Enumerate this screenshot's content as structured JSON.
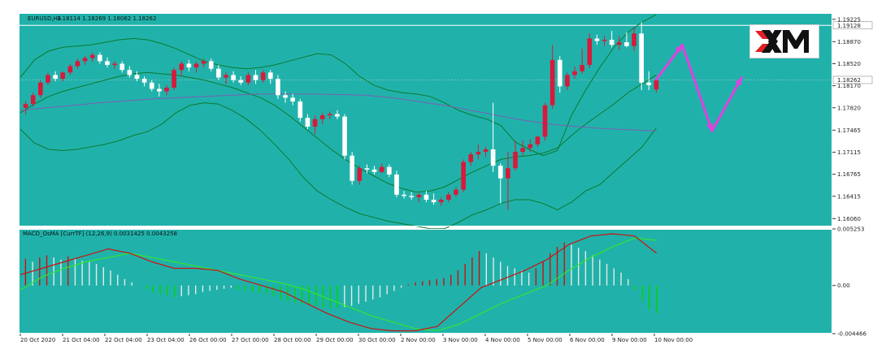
{
  "chart_data": [
    {
      "type": "candlestick",
      "title": "EURUSD,H4",
      "ohlc_header": "1.18114 1.18269 1.18062 1.18262",
      "y_ticks": [
        "1.19225",
        "1.18870",
        "1.18520",
        "1.18170",
        "1.17820",
        "1.17465",
        "1.17115",
        "1.16765",
        "1.16415",
        "1.16060"
      ],
      "ylim": [
        1.15935,
        1.19325
      ],
      "price_labels": {
        "upper_line": "1.19128",
        "current": "1.18262"
      },
      "upper_line_value": 1.19128,
      "current_value": 1.18262,
      "x_ticks": [
        "20 Oct 2020",
        "21 Oct 04:00",
        "22 Oct 04:00",
        "23 Oct 04:00",
        "26 Oct 00:00",
        "27 Oct 00:00",
        "28 Oct 00:00",
        "29 Oct 00:00",
        "30 Oct 00:00",
        "2 Nov 00:00",
        "3 Nov 00:00",
        "4 Nov 00:00",
        "5 Nov 00:00",
        "6 Nov 00:00",
        "9 Nov 00:00",
        "10 Nov 00:00"
      ],
      "candles": [
        [
          1.1782,
          1.1792,
          1.1772,
          1.1788
        ],
        [
          1.1788,
          1.1806,
          1.1784,
          1.1802
        ],
        [
          1.1802,
          1.1826,
          1.1798,
          1.1822
        ],
        [
          1.1822,
          1.1838,
          1.1818,
          1.1834
        ],
        [
          1.1834,
          1.184,
          1.1824,
          1.1828
        ],
        [
          1.1828,
          1.184,
          1.1824,
          1.1838
        ],
        [
          1.1838,
          1.1852,
          1.1834,
          1.1848
        ],
        [
          1.1848,
          1.186,
          1.1844,
          1.1856
        ],
        [
          1.1856,
          1.1864,
          1.185,
          1.1861
        ],
        [
          1.1861,
          1.187,
          1.1855,
          1.1866
        ],
        [
          1.1866,
          1.187,
          1.1852,
          1.1856
        ],
        [
          1.1856,
          1.1862,
          1.1846,
          1.185
        ],
        [
          1.185,
          1.1856,
          1.1844,
          1.1852
        ],
        [
          1.1852,
          1.1856,
          1.1838,
          1.1842
        ],
        [
          1.1842,
          1.1848,
          1.183,
          1.1834
        ],
        [
          1.1834,
          1.184,
          1.1824,
          1.1828
        ],
        [
          1.1828,
          1.1832,
          1.1816,
          1.1822
        ],
        [
          1.1822,
          1.1826,
          1.1808,
          1.1812
        ],
        [
          1.1812,
          1.182,
          1.18,
          1.1808
        ],
        [
          1.1808,
          1.1818,
          1.1802,
          1.1814
        ],
        [
          1.1814,
          1.1846,
          1.181,
          1.1842
        ],
        [
          1.1842,
          1.1856,
          1.1832,
          1.1852
        ],
        [
          1.1852,
          1.1858,
          1.184,
          1.1846
        ],
        [
          1.1846,
          1.1856,
          1.1838,
          1.1852
        ],
        [
          1.1852,
          1.186,
          1.1846,
          1.1856
        ],
        [
          1.1856,
          1.186,
          1.184,
          1.1844
        ],
        [
          1.1844,
          1.185,
          1.1826,
          1.183
        ],
        [
          1.183,
          1.1838,
          1.182,
          1.1834
        ],
        [
          1.1834,
          1.184,
          1.1822,
          1.1826
        ],
        [
          1.1826,
          1.1832,
          1.1818,
          1.1822
        ],
        [
          1.1822,
          1.1838,
          1.1818,
          1.1834
        ],
        [
          1.1834,
          1.1842,
          1.182,
          1.1826
        ],
        [
          1.1826,
          1.1842,
          1.1822,
          1.1838
        ],
        [
          1.1838,
          1.1842,
          1.182,
          1.1828
        ],
        [
          1.1828,
          1.1834,
          1.1796,
          1.1802
        ],
        [
          1.1802,
          1.1808,
          1.179,
          1.1798
        ],
        [
          1.1798,
          1.1804,
          1.1786,
          1.1792
        ],
        [
          1.1792,
          1.1796,
          1.176,
          1.1766
        ],
        [
          1.1766,
          1.1772,
          1.1748,
          1.1752
        ],
        [
          1.1752,
          1.177,
          1.174,
          1.1764
        ],
        [
          1.1764,
          1.1774,
          1.1756,
          1.177
        ],
        [
          1.177,
          1.1776,
          1.1764,
          1.1772
        ],
        [
          1.1772,
          1.1778,
          1.1764,
          1.1768
        ],
        [
          1.1768,
          1.1772,
          1.17,
          1.1706
        ],
        [
          1.1706,
          1.1712,
          1.166,
          1.1666
        ],
        [
          1.1666,
          1.169,
          1.166,
          1.1686
        ],
        [
          1.1686,
          1.1692,
          1.1678,
          1.1684
        ],
        [
          1.1684,
          1.169,
          1.1676,
          1.168
        ],
        [
          1.168,
          1.1694,
          1.1678,
          1.1688
        ],
        [
          1.1688,
          1.1692,
          1.1672,
          1.1676
        ],
        [
          1.1676,
          1.1682,
          1.164,
          1.1644
        ],
        [
          1.1644,
          1.165,
          1.1638,
          1.1642
        ],
        [
          1.1642,
          1.1648,
          1.1636,
          1.164
        ],
        [
          1.164,
          1.1646,
          1.1632,
          1.1644
        ],
        [
          1.1644,
          1.165,
          1.1632,
          1.1636
        ],
        [
          1.1636,
          1.1646,
          1.1628,
          1.1632
        ],
        [
          1.1632,
          1.164,
          1.1626,
          1.1636
        ],
        [
          1.1636,
          1.1648,
          1.1632,
          1.1644
        ],
        [
          1.1644,
          1.1656,
          1.164,
          1.1652
        ],
        [
          1.1652,
          1.17,
          1.1648,
          1.1696
        ],
        [
          1.1696,
          1.1712,
          1.169,
          1.1708
        ],
        [
          1.1708,
          1.1724,
          1.17,
          1.1712
        ],
        [
          1.1712,
          1.172,
          1.1704,
          1.1716
        ],
        [
          1.1716,
          1.179,
          1.168,
          1.169
        ],
        [
          1.169,
          1.1694,
          1.163,
          1.167
        ],
        [
          1.167,
          1.1712,
          1.162,
          1.1686
        ],
        [
          1.1686,
          1.173,
          1.1682,
          1.1712
        ],
        [
          1.1712,
          1.173,
          1.1706,
          1.1718
        ],
        [
          1.1718,
          1.1732,
          1.1712,
          1.1724
        ],
        [
          1.1724,
          1.1738,
          1.172,
          1.1736
        ],
        [
          1.1736,
          1.179,
          1.173,
          1.1786
        ],
        [
          1.1786,
          1.1882,
          1.178,
          1.1858
        ],
        [
          1.1858,
          1.1864,
          1.1806,
          1.1816
        ],
        [
          1.1816,
          1.1838,
          1.181,
          1.1834
        ],
        [
          1.1834,
          1.1848,
          1.1828,
          1.184
        ],
        [
          1.184,
          1.1876,
          1.1836,
          1.185
        ],
        [
          1.185,
          1.19,
          1.1845,
          1.1892
        ],
        [
          1.1892,
          1.1898,
          1.1882,
          1.1888
        ],
        [
          1.1888,
          1.1896,
          1.188,
          1.189
        ],
        [
          1.189,
          1.1904,
          1.1878,
          1.1882
        ],
        [
          1.1882,
          1.1896,
          1.1874,
          1.1886
        ],
        [
          1.1886,
          1.1902,
          1.1878,
          1.188
        ],
        [
          1.188,
          1.191,
          1.1872,
          1.19
        ],
        [
          1.19,
          1.1918,
          1.181,
          1.1822
        ],
        [
          1.1822,
          1.184,
          1.181,
          1.1818
        ],
        [
          1.1811,
          1.1827,
          1.1806,
          1.1826
        ]
      ],
      "bollinger": {
        "upper": [
          1.183,
          1.1858,
          1.1872,
          1.1878,
          1.188,
          1.1882,
          1.1886,
          1.189,
          1.1892,
          1.189,
          1.1884,
          1.1876,
          1.1866,
          1.1856,
          1.185,
          1.1846,
          1.1844,
          1.1846,
          1.185,
          1.1856,
          1.1862,
          1.1868,
          1.1866,
          1.1852,
          1.1832,
          1.1818,
          1.181,
          1.1806,
          1.1804,
          1.18,
          1.179,
          1.1778,
          1.177,
          1.1764,
          1.1754,
          1.1728,
          1.1716,
          1.1706,
          1.1714,
          1.177,
          1.181,
          1.1846,
          1.1878,
          1.1902,
          1.1918,
          1.193
        ],
        "middle": [
          1.1774,
          1.1788,
          1.18,
          1.1808,
          1.1814,
          1.182,
          1.1826,
          1.1832,
          1.1836,
          1.1838,
          1.1836,
          1.1834,
          1.183,
          1.1826,
          1.182,
          1.1814,
          1.1806,
          1.1798,
          1.1786,
          1.177,
          1.1752,
          1.1734,
          1.1716,
          1.17,
          1.1686,
          1.1674,
          1.1662,
          1.1654,
          1.1648,
          1.165,
          1.1656,
          1.1668,
          1.168,
          1.169,
          1.17,
          1.1704,
          1.1706,
          1.171,
          1.1718,
          1.1738,
          1.1756,
          1.1772,
          1.1788,
          1.1806,
          1.182,
          1.1834
        ],
        "lower": [
          1.1748,
          1.1726,
          1.1716,
          1.1714,
          1.1716,
          1.172,
          1.1724,
          1.173,
          1.1738,
          1.1744,
          1.1756,
          1.1774,
          1.1786,
          1.179,
          1.1788,
          1.1778,
          1.1764,
          1.1746,
          1.1724,
          1.17,
          1.1672,
          1.165,
          1.1636,
          1.1624,
          1.1614,
          1.1608,
          1.1602,
          1.1598,
          1.1594,
          1.159,
          1.159,
          1.16,
          1.1612,
          1.162,
          1.163,
          1.1636,
          1.1636,
          1.163,
          1.162,
          1.1632,
          1.165,
          1.166,
          1.168,
          1.17,
          1.172,
          1.175
        ]
      },
      "moving_average": [
        1.1778,
        1.1782,
        1.1786,
        1.179,
        1.1793,
        1.1796,
        1.1798,
        1.18,
        1.1802,
        1.1804,
        1.1804,
        1.1804,
        1.1803,
        1.1802,
        1.1798,
        1.1792,
        1.1786,
        1.1778,
        1.177,
        1.1762,
        1.1756,
        1.1752,
        1.1749,
        1.1747,
        1.1745
      ],
      "forecast_arrows": [
        {
          "from": [
            1.1827,
            85
          ],
          "to": [
            1.1882,
            88.5
          ]
        },
        {
          "from": [
            1.1882,
            88.5
          ],
          "to": [
            1.1745,
            92.5
          ]
        },
        {
          "from": [
            1.1745,
            92.5
          ],
          "to": [
            1.183,
            96.5
          ]
        }
      ],
      "logo": "XM"
    },
    {
      "type": "bar",
      "title": "MACD_OsMA [CurrTF] (12,26,9) 0.0031425 0.0043258",
      "y_ticks": [
        "0.005253",
        "0.00",
        "-0.004466"
      ],
      "ylim": [
        -0.004466,
        0.005253
      ],
      "histogram": [
        0.0025,
        0.0022,
        0.0026,
        0.0028,
        0.0026,
        0.0024,
        0.0027,
        0.0025,
        0.0023,
        0.0022,
        0.002,
        0.0017,
        0.0014,
        0.001,
        0.0006,
        0.0003,
        0.0,
        -0.0003,
        -0.0006,
        -0.0008,
        -0.0009,
        -0.0011,
        -0.001,
        -0.0009,
        -0.0008,
        -0.0006,
        -0.0005,
        -0.0004,
        -0.0003,
        -0.0002,
        -0.0004,
        -0.0005,
        -0.0006,
        -0.0007,
        -0.0008,
        -0.001,
        -0.0013,
        -0.0015,
        -0.0016,
        -0.0017,
        -0.0018,
        -0.0019,
        -0.002,
        -0.0021,
        -0.0021,
        -0.002,
        -0.0019,
        -0.0017,
        -0.0015,
        -0.0013,
        -0.0011,
        -0.0008,
        -0.0005,
        -0.0002,
        0.0001,
        0.0003,
        0.0004,
        0.0005,
        0.0006,
        0.0007,
        0.001,
        0.0014,
        0.002,
        0.0026,
        0.0032,
        0.003,
        0.0026,
        0.0022,
        0.0018,
        0.0016,
        0.0014,
        0.0012,
        0.0016,
        0.0022,
        0.003,
        0.0036,
        0.004,
        0.0038,
        0.0035,
        0.0032,
        0.0028,
        0.0024,
        0.002,
        0.0016,
        0.0012,
        0.0006,
        -0.0004,
        -0.0014,
        -0.0022,
        -0.0026
      ],
      "series": [
        {
          "values": [
            0.001,
            0.0016,
            0.0022,
            0.0028,
            0.0034,
            0.003,
            0.0022,
            0.0016,
            0.0016,
            0.0014,
            0.0006,
            0.0,
            -0.0006,
            -0.0016,
            -0.0026,
            -0.0034,
            -0.004,
            -0.0042,
            -0.0042,
            -0.0038,
            -0.002,
            -0.0002,
            0.0006,
            0.0014,
            0.0024,
            0.0038,
            0.0046,
            0.0048,
            0.0046,
            0.003
          ]
        },
        {
          "values": [
            -0.0004,
            0.0008,
            0.0016,
            0.0022,
            0.0026,
            0.003,
            0.0026,
            0.0022,
            0.0018,
            0.0014,
            0.001,
            0.0006,
            0.0002,
            -0.0004,
            -0.0012,
            -0.002,
            -0.0028,
            -0.0034,
            -0.004,
            -0.0042,
            -0.0036,
            -0.0026,
            -0.0016,
            -0.0008,
            0.0,
            0.0014,
            0.0026,
            0.0036,
            0.0044,
            0.0042
          ]
        }
      ]
    }
  ],
  "colors": {
    "background": "#20b2aa",
    "frame": "#ffffff",
    "bull": "#d61a3c",
    "bear": "#ffffff",
    "bollinger": "#0b7a2f",
    "moving_average": "#7a5fb3",
    "macd_line": "#cc1111",
    "signal_line": "#31e531",
    "hist_pos_strong": "#c81111",
    "hist_pos_weak": "#e8e8e8",
    "hist_neg_strong": "#00d600",
    "hist_neg_weak": "#e8e8e8",
    "arrow": "#e040e0",
    "upper_line": "#ffffff",
    "label_current_bg": "#ffffff"
  }
}
